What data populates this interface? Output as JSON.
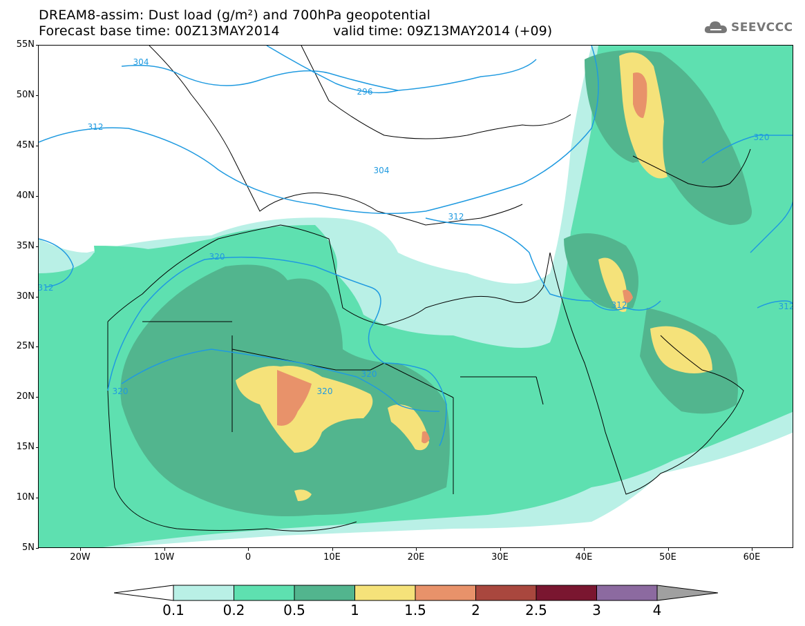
{
  "header": {
    "title_line1": "DREAM8-assim: Dust load (g/m²) and 700hPa geopotential",
    "title_line2_left": "Forecast base time: 00Z13MAY2014",
    "title_line2_right": "valid time: 09Z13MAY2014 (+09)",
    "logo_text": "SEEVCCC",
    "logo_icon": "cloud-icon"
  },
  "map": {
    "lon_range": [
      -25,
      65
    ],
    "lat_range": [
      5,
      55
    ],
    "lat_labels": [
      "55N",
      "50N",
      "45N",
      "40N",
      "35N",
      "30N",
      "25N",
      "20N",
      "15N",
      "10N",
      "5N"
    ],
    "lon_labels": [
      "20W",
      "10W",
      "0",
      "10E",
      "20E",
      "30E",
      "40E",
      "50E",
      "60E"
    ],
    "contour_labels": [
      "304",
      "296",
      "312",
      "304",
      "312",
      "320",
      "312",
      "320",
      "320",
      "320",
      "312",
      "320",
      "312"
    ],
    "contour_color": "#1f9ae0"
  },
  "colorbar": {
    "levels": [
      "0.1",
      "0.2",
      "0.5",
      "1",
      "1.5",
      "2",
      "2.5",
      "3",
      "4"
    ],
    "colors": [
      "#b9f0e6",
      "#5ee0b0",
      "#52b58e",
      "#f5e27a",
      "#e8926a",
      "#a9473e",
      "#7a1630",
      "#8c6aa0",
      "#a0a0a0"
    ]
  }
}
